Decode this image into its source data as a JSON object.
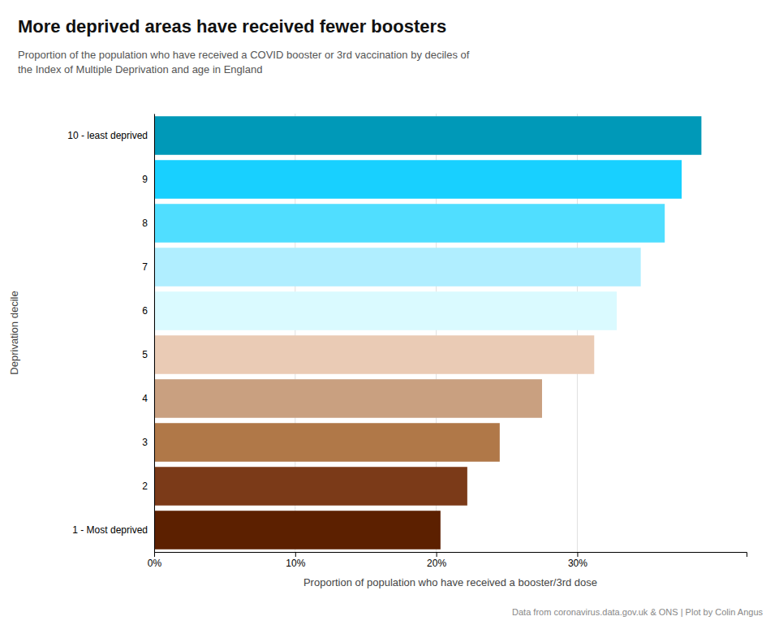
{
  "chart_data": {
    "type": "bar",
    "orientation": "horizontal",
    "title": "More deprived areas have received fewer boosters",
    "subtitle": "Proportion of the population who have received a COVID booster or 3rd vaccination by deciles of\nthe Index of Multiple Deprivation and age in England",
    "xlabel": "Proportion of population who have received a booster/3rd dose",
    "ylabel": "Deprivation decile",
    "footer": "Data from coronavirus.data.gov.uk & ONS | Plot by Colin Angus",
    "categories": [
      "1 - Most deprived",
      "2",
      "3",
      "4",
      "5",
      "6",
      "7",
      "8",
      "9",
      "10 - least deprived"
    ],
    "values": [
      20.3,
      22.2,
      24.5,
      27.5,
      31.2,
      32.8,
      34.5,
      36.2,
      37.4,
      38.8
    ],
    "colors": [
      "#5C2000",
      "#7B3A18",
      "#B07848",
      "#C9A080",
      "#EACBB5",
      "#DAFAFF",
      "#B0EEFF",
      "#50DEFF",
      "#18D0FF",
      "#0099B8"
    ],
    "xlim": [
      0,
      42
    ],
    "xticks": [
      {
        "value": 0,
        "label": "0%"
      },
      {
        "value": 10,
        "label": "10%"
      },
      {
        "value": 20,
        "label": "20%"
      },
      {
        "value": 30,
        "label": "30%"
      }
    ],
    "grid": true
  }
}
